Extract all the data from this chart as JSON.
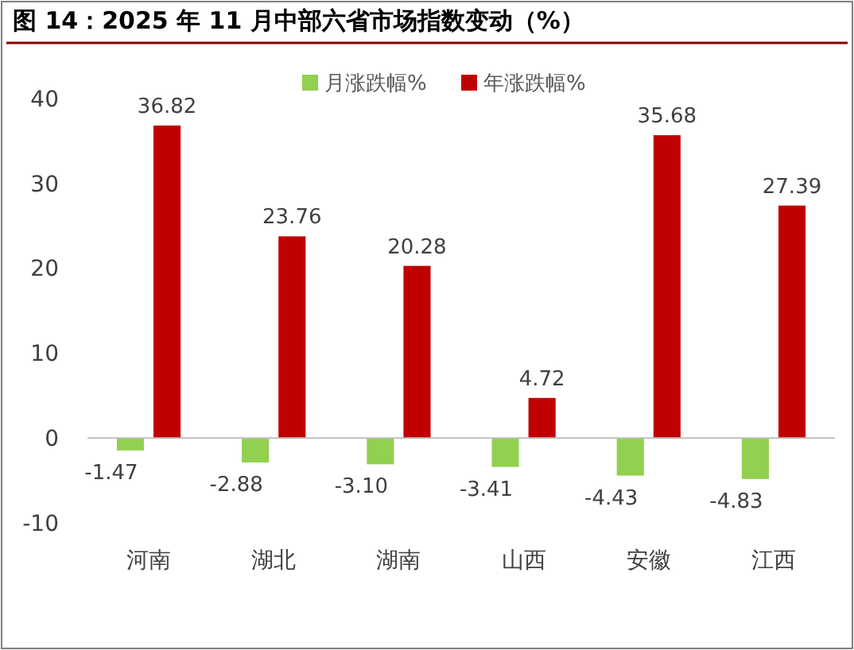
{
  "chart_data": {
    "type": "bar",
    "title": "图 14：2025 年 11 月中部六省市场指数变动（%）",
    "categories": [
      "河南",
      "湖北",
      "湖南",
      "山西",
      "安徽",
      "江西"
    ],
    "series": [
      {
        "name": "月涨跌幅%",
        "color": "#92d050",
        "values": [
          -1.47,
          -2.88,
          -3.1,
          -3.41,
          -4.43,
          -4.83
        ]
      },
      {
        "name": "年涨跌幅%",
        "color": "#c00000",
        "values": [
          36.82,
          23.76,
          20.28,
          4.72,
          35.68,
          27.39
        ]
      }
    ],
    "value_labels": [
      [
        "-1.47",
        "-2.88",
        "-3.10",
        "-3.41",
        "-4.43",
        "-4.83"
      ],
      [
        "36.82",
        "23.76",
        "20.28",
        "4.72",
        "35.68",
        "27.39"
      ]
    ],
    "ylim": [
      -10,
      40
    ],
    "yticks": [
      -10,
      0,
      10,
      20,
      30,
      40
    ],
    "legend": "top"
  }
}
